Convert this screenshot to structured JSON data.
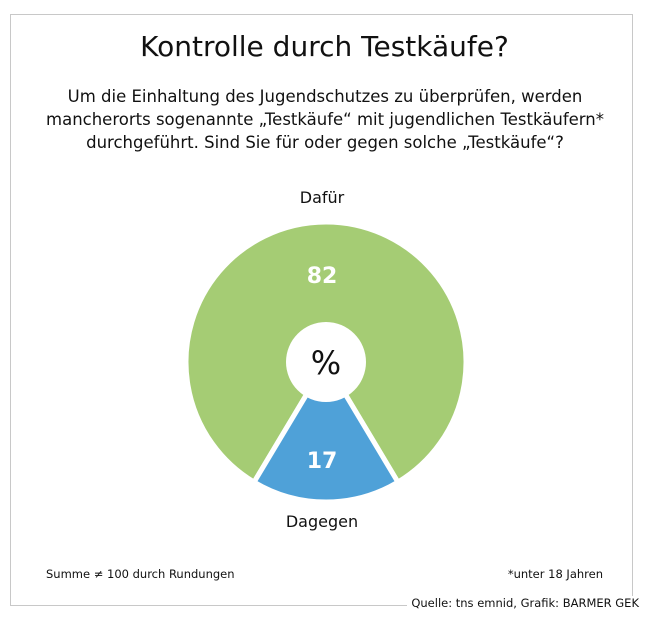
{
  "title": "Kontrolle durch Testkäufe?",
  "question": "Um die Einhaltung des Jugendschutzes zu überprüfen, werden mancherorts sogenannte „Testkäufe“ mit jugendlichen Testkäufern* durchgeführt. Sind Sie für oder gegen solche „Testkäufe“?",
  "footnote_left": "Summe ≠ 100 durch Rundungen",
  "footnote_right": "*unter 18 Jahren",
  "source": "Quelle: tns emnid, Grafik: BARMER GEK",
  "chart_data": {
    "type": "pie",
    "unit_label": "%",
    "categories": [
      "Dafür",
      "Dagegen"
    ],
    "values": [
      82,
      17
    ],
    "colors": [
      "#a5cc74",
      "#4fa1d8"
    ],
    "title": "Kontrolle durch Testkäufe?"
  }
}
